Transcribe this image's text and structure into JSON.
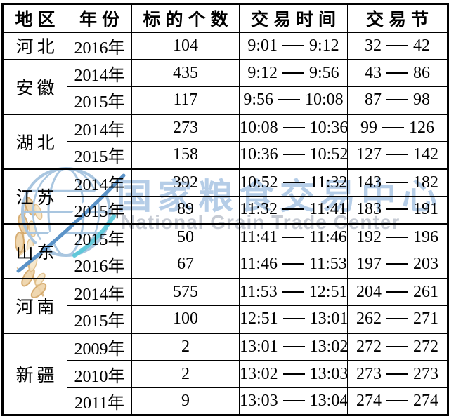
{
  "page": {
    "background": "#ffffff"
  },
  "watermark": {
    "logo_icon": "globe-wheat-logo",
    "cn_text": "国家粮食交易中心",
    "en_text": "National Grain Trade Center",
    "cn_color": "#b5cde7",
    "en_color": "#c6cbd4",
    "globe_blue": "#a9c6e0",
    "swoosh_blue": "#5b93c8",
    "swoosh_cyan": "#57c7d8",
    "wheat_gold_fill": "#eed3a8",
    "wheat_gold_stroke": "#d3a666"
  },
  "table": {
    "border_color": "#000000",
    "headers": [
      "地区",
      "年份",
      "标的个数",
      "交易时间",
      "交易节"
    ],
    "regions": [
      {
        "name": "河北",
        "rows": [
          {
            "year": "2016年",
            "count": "104",
            "time_from": "9:01",
            "time_to": "9:12",
            "session_from": "32",
            "session_to": "42"
          }
        ]
      },
      {
        "name": "安徽",
        "rows": [
          {
            "year": "2014年",
            "count": "435",
            "time_from": "9:12",
            "time_to": "9:56",
            "session_from": "43",
            "session_to": "86"
          },
          {
            "year": "2015年",
            "count": "117",
            "time_from": "9:56",
            "time_to": "10:08",
            "session_from": "87",
            "session_to": "98"
          }
        ]
      },
      {
        "name": "湖北",
        "rows": [
          {
            "year": "2014年",
            "count": "273",
            "time_from": "10:08",
            "time_to": "10:36",
            "session_from": "99",
            "session_to": "126"
          },
          {
            "year": "2015年",
            "count": "158",
            "time_from": "10:36",
            "time_to": "10:52",
            "session_from": "127",
            "session_to": "142"
          }
        ]
      },
      {
        "name": "江苏",
        "rows": [
          {
            "year": "2014年",
            "count": "392",
            "time_from": "10:52",
            "time_to": "11:32",
            "session_from": "143",
            "session_to": "182"
          },
          {
            "year": "2015年",
            "count": "89",
            "time_from": "11:32",
            "time_to": "11:41",
            "session_from": "183",
            "session_to": "191"
          }
        ]
      },
      {
        "name": "山东",
        "rows": [
          {
            "year": "2015年",
            "count": "50",
            "time_from": "11:41",
            "time_to": "11:46",
            "session_from": "192",
            "session_to": "196"
          },
          {
            "year": "2016年",
            "count": "67",
            "time_from": "11:46",
            "time_to": "11:53",
            "session_from": "197",
            "session_to": "203"
          }
        ]
      },
      {
        "name": "河南",
        "rows": [
          {
            "year": "2014年",
            "count": "575",
            "time_from": "11:53",
            "time_to": "12:51",
            "session_from": "204",
            "session_to": "261"
          },
          {
            "year": "2015年",
            "count": "100",
            "time_from": "12:51",
            "time_to": "13:01",
            "session_from": "262",
            "session_to": "271"
          }
        ]
      },
      {
        "name": "新疆",
        "rows": [
          {
            "year": "2009年",
            "count": "2",
            "time_from": "13:01",
            "time_to": "13:02",
            "session_from": "272",
            "session_to": "272"
          },
          {
            "year": "2010年",
            "count": "2",
            "time_from": "13:02",
            "time_to": "13:03",
            "session_from": "273",
            "session_to": "273"
          },
          {
            "year": "2011年",
            "count": "9",
            "time_from": "13:03",
            "time_to": "13:04",
            "session_from": "274",
            "session_to": "274"
          }
        ]
      }
    ]
  }
}
